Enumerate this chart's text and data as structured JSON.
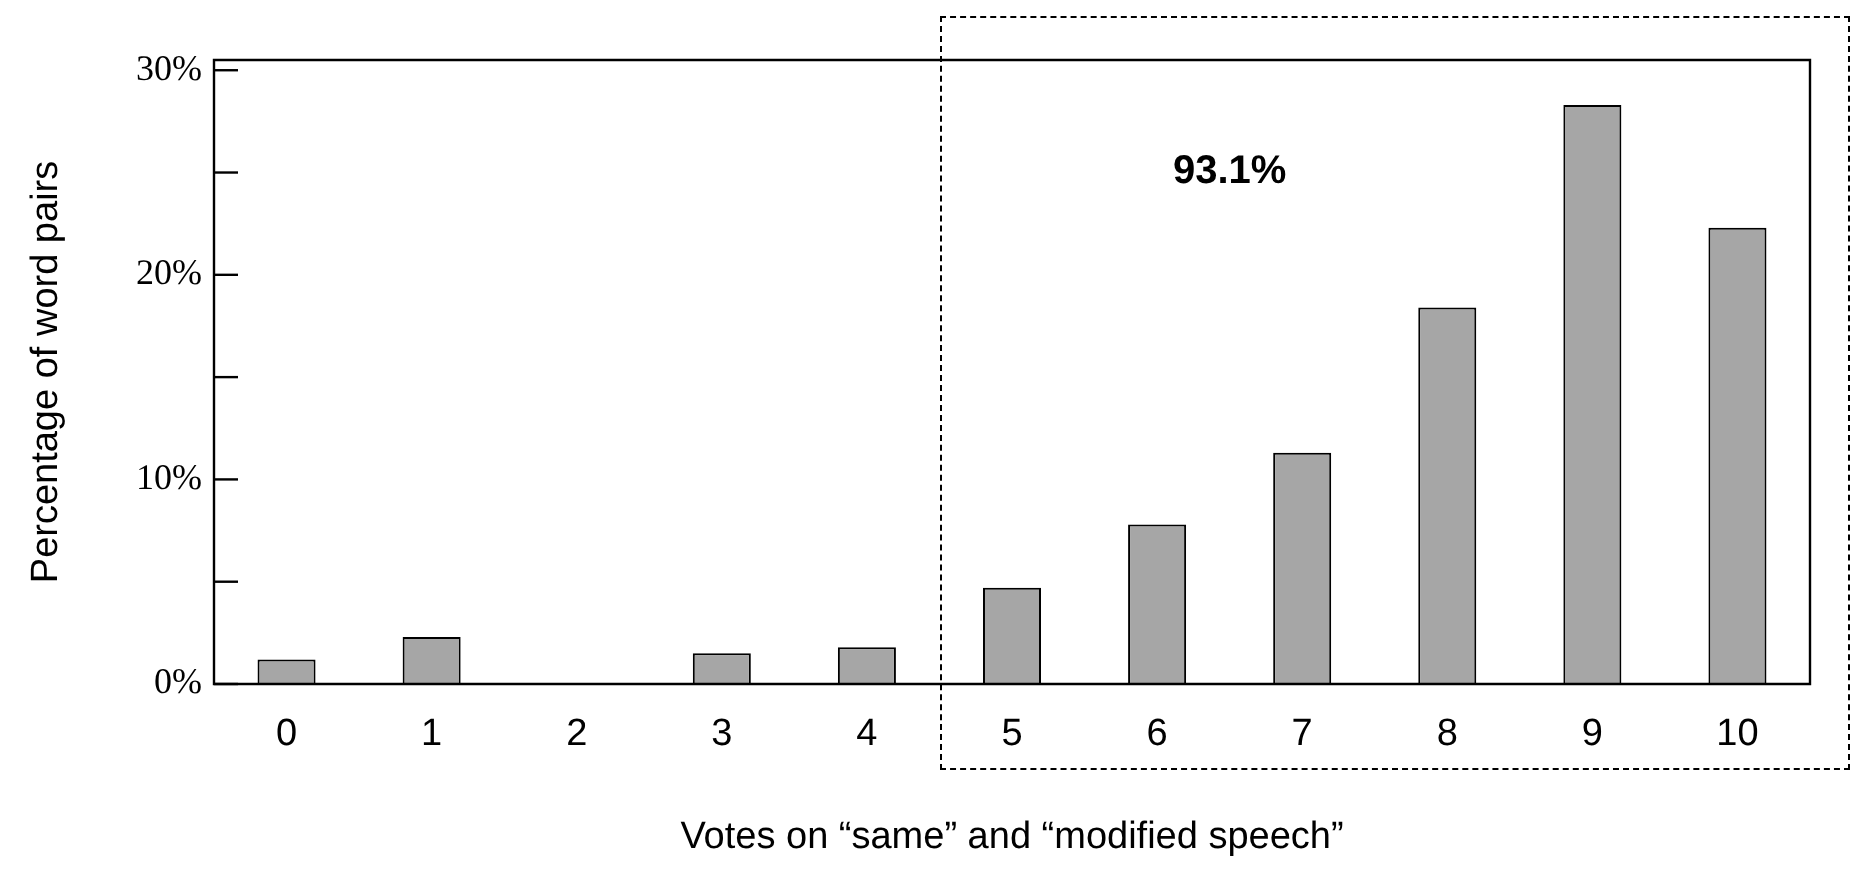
{
  "chart_data": {
    "type": "bar",
    "xlabel": "Votes on “same” and “modified speech”",
    "ylabel": "Percentage of word pairs",
    "categories": [
      "0",
      "1",
      "2",
      "3",
      "4",
      "5",
      "6",
      "7",
      "8",
      "9",
      "10"
    ],
    "values": [
      1.2,
      2.3,
      0,
      1.5,
      1.8,
      4.7,
      7.8,
      11.3,
      18.4,
      28.3,
      22.3
    ],
    "color": "#a6a6a6",
    "ylim": [
      0,
      30.5
    ],
    "yticks": [
      {
        "value": 0,
        "label": "0%"
      },
      {
        "value": 5,
        "label": null
      },
      {
        "value": 10,
        "label": "10%"
      },
      {
        "value": 15,
        "label": null
      },
      {
        "value": 20,
        "label": "20%"
      },
      {
        "value": 25,
        "label": null
      },
      {
        "value": 30,
        "label": "30%"
      }
    ],
    "annotations": [
      "93.1%"
    ],
    "grid": false,
    "legend": false
  }
}
